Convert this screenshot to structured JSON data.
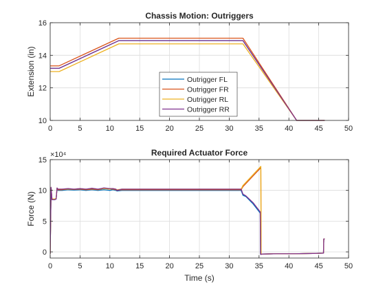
{
  "figure": {
    "background": "#ffffff"
  },
  "chart_data": [
    {
      "type": "line",
      "title": "Chassis Motion: Outriggers",
      "xlabel": "",
      "ylabel": "Extension (in)",
      "xlim": [
        0,
        50
      ],
      "ylim": [
        10,
        16
      ],
      "xticks": [
        0,
        5,
        10,
        15,
        20,
        25,
        30,
        35,
        40,
        45,
        50
      ],
      "yticks": [
        10,
        12,
        14,
        16
      ],
      "grid": true,
      "legend": "center",
      "series": [
        {
          "name": "Outrigger FL",
          "color": "#0072BD",
          "x": [
            0,
            1.5,
            11.5,
            32.3,
            41.3,
            46
          ],
          "y": [
            13.2,
            13.2,
            14.9,
            14.9,
            10.0,
            10.0
          ]
        },
        {
          "name": "Outrigger FR",
          "color": "#D95319",
          "x": [
            0,
            1.5,
            11.5,
            32.3,
            41.3,
            46
          ],
          "y": [
            13.35,
            13.35,
            15.05,
            15.05,
            10.0,
            10.0
          ]
        },
        {
          "name": "Outrigger RL",
          "color": "#EDB120",
          "x": [
            0,
            1.5,
            11.5,
            32.3,
            41.3,
            46
          ],
          "y": [
            13.0,
            13.0,
            14.7,
            14.7,
            10.0,
            10.0
          ]
        },
        {
          "name": "Outrigger RR",
          "color": "#7E2F8E",
          "x": [
            0,
            1.5,
            11.5,
            32.3,
            41.3,
            46
          ],
          "y": [
            13.2,
            13.2,
            14.9,
            14.9,
            10.0,
            10.0
          ]
        }
      ]
    },
    {
      "type": "line",
      "title": "Required Actuator Force",
      "xlabel": "Time (s)",
      "ylabel": "Force (N)",
      "exponent_label": "×10⁴",
      "xlim": [
        0,
        50
      ],
      "ylim": [
        -1,
        15
      ],
      "xticks": [
        0,
        5,
        10,
        15,
        20,
        25,
        30,
        35,
        40,
        45,
        50
      ],
      "yticks": [
        0,
        5,
        10,
        15
      ],
      "grid": true,
      "legend": "none",
      "series": [
        {
          "name": "",
          "color": "#0072BD",
          "x": [
            0,
            0.15,
            0.3,
            0.8,
            1.0,
            1.15,
            1.3,
            2,
            3,
            4,
            5,
            6,
            7,
            8,
            9,
            10,
            10.5,
            11,
            11.2,
            12,
            20,
            32.0,
            32.3,
            32.8,
            34,
            35.2,
            35.25,
            35.6,
            38,
            41,
            44,
            45.8,
            45.85,
            46
          ],
          "y": [
            -0.3,
            10.4,
            8.5,
            8.5,
            8.6,
            10.3,
            10.0,
            10.0,
            10.1,
            10.05,
            10.1,
            10.0,
            10.1,
            10.0,
            10.1,
            10.0,
            10.1,
            10.0,
            9.9,
            10.0,
            10.0,
            10.0,
            9.2,
            9.0,
            7.8,
            6.3,
            -0.4,
            -0.35,
            -0.3,
            -0.3,
            -0.25,
            -0.2,
            2.1,
            2.1
          ]
        },
        {
          "name": "",
          "color": "#D95319",
          "x": [
            0,
            0.15,
            0.3,
            0.8,
            1.0,
            1.15,
            1.3,
            2,
            3,
            4,
            5,
            6,
            7,
            8,
            9,
            10,
            10.5,
            11,
            11.2,
            12,
            20,
            32.0,
            32.3,
            35.3,
            35.35,
            35.6,
            38,
            41,
            44,
            45.8,
            45.85,
            46
          ],
          "y": [
            -0.3,
            10.4,
            8.6,
            8.6,
            8.7,
            10.3,
            10.1,
            10.1,
            10.2,
            10.15,
            10.2,
            10.1,
            10.2,
            10.1,
            10.3,
            10.2,
            10.2,
            10.1,
            10.0,
            10.1,
            10.1,
            10.1,
            10.6,
            13.7,
            -0.4,
            -0.35,
            -0.3,
            -0.3,
            -0.25,
            -0.2,
            2.1,
            2.1
          ]
        },
        {
          "name": "",
          "color": "#EDB120",
          "x": [
            0,
            0.15,
            0.3,
            0.8,
            1.0,
            1.15,
            1.3,
            2,
            3,
            4,
            5,
            6,
            7,
            8,
            9,
            10,
            10.5,
            11,
            11.2,
            12,
            20,
            32.0,
            32.3,
            35.3,
            35.35,
            35.6,
            38,
            41,
            44,
            45.8,
            45.85,
            46
          ],
          "y": [
            -0.3,
            10.5,
            8.6,
            8.6,
            8.7,
            10.4,
            10.2,
            10.2,
            10.25,
            10.2,
            10.3,
            10.2,
            10.3,
            10.2,
            10.3,
            10.2,
            10.3,
            10.2,
            10.1,
            10.2,
            10.2,
            10.2,
            10.8,
            13.9,
            -0.4,
            -0.35,
            -0.3,
            -0.3,
            -0.25,
            -0.2,
            2.1,
            2.1
          ]
        },
        {
          "name": "",
          "color": "#7E2F8E",
          "x": [
            0,
            0.15,
            0.3,
            0.8,
            1.0,
            1.15,
            1.3,
            2,
            3,
            4,
            5,
            6,
            7,
            8,
            9,
            10,
            10.5,
            11,
            11.2,
            12,
            20,
            32.0,
            32.3,
            32.8,
            34,
            35.2,
            35.25,
            35.6,
            38,
            41,
            44,
            45.8,
            45.85,
            46
          ],
          "y": [
            -0.3,
            10.5,
            8.5,
            8.5,
            8.6,
            10.4,
            10.2,
            10.2,
            10.3,
            10.2,
            10.3,
            10.2,
            10.35,
            10.2,
            10.4,
            10.3,
            10.3,
            10.2,
            10.0,
            10.2,
            10.2,
            10.2,
            9.4,
            9.1,
            8.0,
            6.5,
            -0.4,
            -0.35,
            -0.3,
            -0.3,
            -0.25,
            -0.2,
            2.1,
            2.1
          ]
        }
      ]
    }
  ]
}
